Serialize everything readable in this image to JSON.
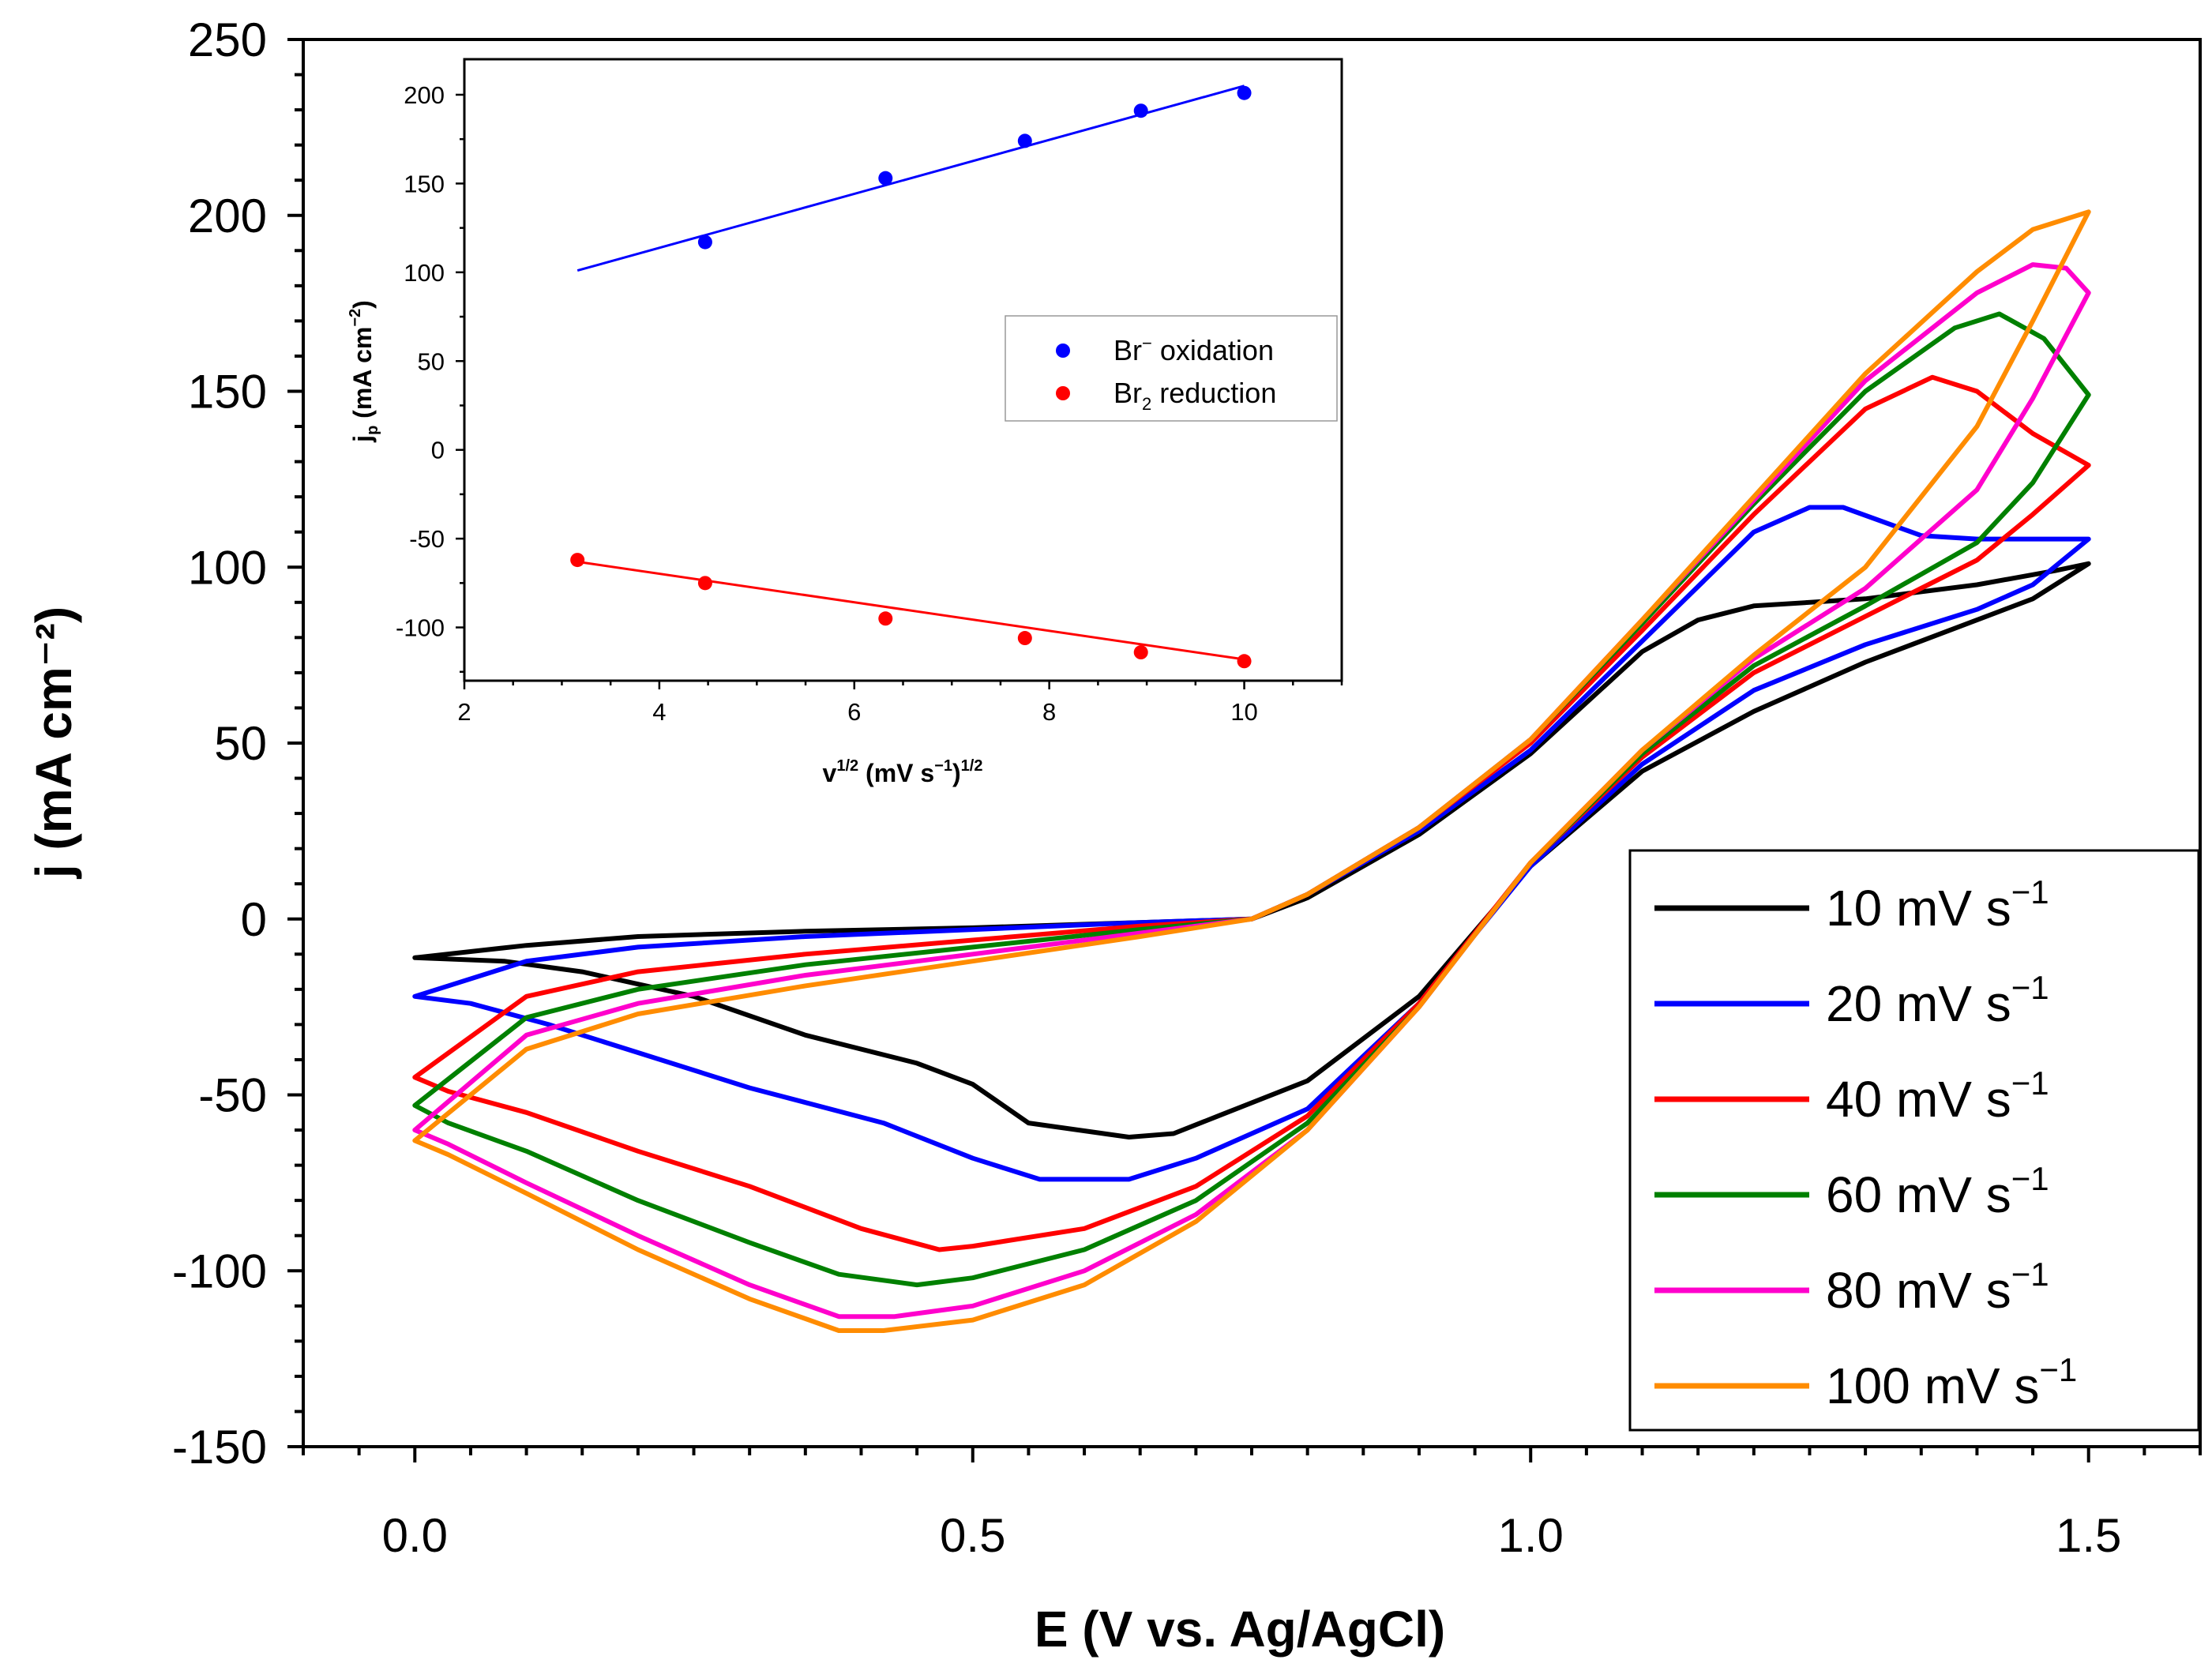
{
  "chart_data": [
    {
      "type": "line",
      "name": "cyclic-voltammogram",
      "xlabel": "E (V vs. Ag/AgCl)",
      "ylabel": "j (mA cm⁻²)",
      "xlim": [
        -0.1,
        1.6
      ],
      "ylim": [
        -150,
        250
      ],
      "x_ticks": [
        "0.0",
        "0.5",
        "1.0",
        "1.5"
      ],
      "y_ticks": [
        "-150",
        "-100",
        "-50",
        "0",
        "50",
        "100",
        "150",
        "200",
        "250"
      ],
      "legend_location": "lower-right",
      "series": [
        {
          "name": "10 mV s⁻¹",
          "label_main": "10 mV s",
          "label_sup": "−1",
          "color": "#000000",
          "forward": [
            [
              0,
              -11
            ],
            [
              0.1,
              -7.5
            ],
            [
              0.2,
              -5
            ],
            [
              0.35,
              -3.5
            ],
            [
              0.5,
              -2.5
            ],
            [
              0.65,
              -1
            ],
            [
              0.75,
              0
            ],
            [
              0.8,
              6
            ],
            [
              0.9,
              24
            ],
            [
              1.0,
              47
            ],
            [
              1.1,
              76
            ],
            [
              1.15,
              85
            ],
            [
              1.2,
              89
            ],
            [
              1.3,
              91
            ],
            [
              1.4,
              95
            ],
            [
              1.47,
              99
            ],
            [
              1.5,
              101
            ]
          ],
          "reverse": [
            [
              1.5,
              101
            ],
            [
              1.45,
              91
            ],
            [
              1.4,
              85
            ],
            [
              1.3,
              73
            ],
            [
              1.2,
              59
            ],
            [
              1.1,
              42
            ],
            [
              1.0,
              15
            ],
            [
              0.9,
              -22
            ],
            [
              0.8,
              -46
            ],
            [
              0.72,
              -56
            ],
            [
              0.68,
              -61
            ],
            [
              0.64,
              -62
            ],
            [
              0.55,
              -58
            ],
            [
              0.5,
              -47
            ],
            [
              0.45,
              -41
            ],
            [
              0.35,
              -33
            ],
            [
              0.25,
              -22
            ],
            [
              0.15,
              -15
            ],
            [
              0.08,
              -12
            ],
            [
              0,
              -11
            ]
          ]
        },
        {
          "name": "20 mV s⁻¹",
          "label_main": "20 mV s",
          "label_sup": "−1",
          "color": "#0000FF",
          "forward": [
            [
              0,
              -22
            ],
            [
              0.1,
              -12
            ],
            [
              0.2,
              -8
            ],
            [
              0.35,
              -5
            ],
            [
              0.5,
              -3
            ],
            [
              0.65,
              -1
            ],
            [
              0.75,
              0
            ],
            [
              0.8,
              7
            ],
            [
              0.9,
              25
            ],
            [
              1.0,
              48
            ],
            [
              1.1,
              79
            ],
            [
              1.2,
              110
            ],
            [
              1.25,
              117
            ],
            [
              1.28,
              117
            ],
            [
              1.35,
              109
            ],
            [
              1.4,
              108
            ],
            [
              1.5,
              108
            ]
          ],
          "reverse": [
            [
              1.5,
              108
            ],
            [
              1.45,
              95
            ],
            [
              1.4,
              88
            ],
            [
              1.3,
              78
            ],
            [
              1.2,
              65
            ],
            [
              1.1,
              44
            ],
            [
              1.0,
              15
            ],
            [
              0.9,
              -24
            ],
            [
              0.8,
              -54
            ],
            [
              0.7,
              -68
            ],
            [
              0.64,
              -74
            ],
            [
              0.56,
              -74
            ],
            [
              0.5,
              -68
            ],
            [
              0.42,
              -58
            ],
            [
              0.3,
              -48
            ],
            [
              0.2,
              -38
            ],
            [
              0.12,
              -30
            ],
            [
              0.05,
              -24
            ],
            [
              0,
              -22
            ]
          ]
        },
        {
          "name": "40 mV s⁻¹",
          "label_main": "40 mV s",
          "label_sup": "−1",
          "color": "#FF0000",
          "forward": [
            [
              0,
              -45
            ],
            [
              0.1,
              -22
            ],
            [
              0.2,
              -15
            ],
            [
              0.35,
              -10
            ],
            [
              0.5,
              -6
            ],
            [
              0.65,
              -2
            ],
            [
              0.75,
              0
            ],
            [
              0.8,
              7
            ],
            [
              0.9,
              26
            ],
            [
              1.0,
              50
            ],
            [
              1.1,
              82
            ],
            [
              1.2,
              115
            ],
            [
              1.3,
              145
            ],
            [
              1.36,
              154
            ],
            [
              1.4,
              150
            ],
            [
              1.45,
              138
            ],
            [
              1.5,
              129
            ]
          ],
          "reverse": [
            [
              1.5,
              129
            ],
            [
              1.45,
              115
            ],
            [
              1.4,
              102
            ],
            [
              1.3,
              86
            ],
            [
              1.2,
              70
            ],
            [
              1.1,
              46
            ],
            [
              1.0,
              16
            ],
            [
              0.9,
              -24
            ],
            [
              0.8,
              -56
            ],
            [
              0.7,
              -76
            ],
            [
              0.6,
              -88
            ],
            [
              0.5,
              -93
            ],
            [
              0.47,
              -94
            ],
            [
              0.4,
              -88
            ],
            [
              0.3,
              -76
            ],
            [
              0.2,
              -66
            ],
            [
              0.1,
              -55
            ],
            [
              0.03,
              -49
            ],
            [
              0,
              -45
            ]
          ]
        },
        {
          "name": "60 mV s⁻¹",
          "label_main": "60 mV s",
          "label_sup": "−1",
          "color": "#008000",
          "forward": [
            [
              0,
              -53
            ],
            [
              0.1,
              -28
            ],
            [
              0.2,
              -20
            ],
            [
              0.35,
              -13
            ],
            [
              0.5,
              -8
            ],
            [
              0.65,
              -3
            ],
            [
              0.75,
              0
            ],
            [
              0.8,
              7
            ],
            [
              0.9,
              26
            ],
            [
              1.0,
              51
            ],
            [
              1.1,
              84
            ],
            [
              1.2,
              118
            ],
            [
              1.3,
              150
            ],
            [
              1.38,
              168
            ],
            [
              1.42,
              172
            ],
            [
              1.46,
              165
            ],
            [
              1.5,
              149
            ]
          ],
          "reverse": [
            [
              1.5,
              149
            ],
            [
              1.45,
              124
            ],
            [
              1.4,
              107
            ],
            [
              1.3,
              89
            ],
            [
              1.2,
              72
            ],
            [
              1.1,
              47
            ],
            [
              1.0,
              16
            ],
            [
              0.9,
              -25
            ],
            [
              0.8,
              -58
            ],
            [
              0.7,
              -80
            ],
            [
              0.6,
              -94
            ],
            [
              0.5,
              -102
            ],
            [
              0.45,
              -104
            ],
            [
              0.38,
              -101
            ],
            [
              0.3,
              -92
            ],
            [
              0.2,
              -80
            ],
            [
              0.1,
              -66
            ],
            [
              0.03,
              -58
            ],
            [
              0,
              -53
            ]
          ]
        },
        {
          "name": "80 mV s⁻¹",
          "label_main": "80 mV s",
          "label_sup": "−1",
          "color": "#FF00CC",
          "forward": [
            [
              0,
              -60
            ],
            [
              0.1,
              -33
            ],
            [
              0.2,
              -24
            ],
            [
              0.35,
              -16
            ],
            [
              0.5,
              -10
            ],
            [
              0.65,
              -4
            ],
            [
              0.75,
              0
            ],
            [
              0.8,
              7
            ],
            [
              0.9,
              26
            ],
            [
              1.0,
              51
            ],
            [
              1.1,
              85
            ],
            [
              1.2,
              119
            ],
            [
              1.3,
              153
            ],
            [
              1.4,
              178
            ],
            [
              1.45,
              186
            ],
            [
              1.48,
              185
            ],
            [
              1.5,
              178
            ]
          ],
          "reverse": [
            [
              1.5,
              178
            ],
            [
              1.45,
              148
            ],
            [
              1.4,
              122
            ],
            [
              1.3,
              94
            ],
            [
              1.2,
              74
            ],
            [
              1.1,
              48
            ],
            [
              1.0,
              16
            ],
            [
              0.9,
              -25
            ],
            [
              0.8,
              -60
            ],
            [
              0.7,
              -84
            ],
            [
              0.6,
              -100
            ],
            [
              0.5,
              -110
            ],
            [
              0.43,
              -113
            ],
            [
              0.38,
              -113
            ],
            [
              0.3,
              -104
            ],
            [
              0.2,
              -90
            ],
            [
              0.1,
              -75
            ],
            [
              0.03,
              -64
            ],
            [
              0,
              -60
            ]
          ]
        },
        {
          "name": "100 mV s⁻¹",
          "label_main": "100 mV s",
          "label_sup": "−1",
          "color": "#FF8C00",
          "forward": [
            [
              0,
              -63
            ],
            [
              0.1,
              -37
            ],
            [
              0.2,
              -27
            ],
            [
              0.35,
              -19
            ],
            [
              0.5,
              -12
            ],
            [
              0.65,
              -5
            ],
            [
              0.75,
              0
            ],
            [
              0.8,
              7
            ],
            [
              0.9,
              26
            ],
            [
              1.0,
              51
            ],
            [
              1.1,
              85
            ],
            [
              1.2,
              120
            ],
            [
              1.3,
              155
            ],
            [
              1.4,
              184
            ],
            [
              1.45,
              196
            ],
            [
              1.5,
              201
            ]
          ],
          "reverse": [
            [
              1.5,
              201
            ],
            [
              1.45,
              170
            ],
            [
              1.4,
              140
            ],
            [
              1.3,
              100
            ],
            [
              1.2,
              75
            ],
            [
              1.1,
              48
            ],
            [
              1.0,
              16
            ],
            [
              0.9,
              -25
            ],
            [
              0.8,
              -60
            ],
            [
              0.7,
              -86
            ],
            [
              0.6,
              -104
            ],
            [
              0.5,
              -114
            ],
            [
              0.42,
              -117
            ],
            [
              0.38,
              -117
            ],
            [
              0.3,
              -108
            ],
            [
              0.2,
              -94
            ],
            [
              0.1,
              -78
            ],
            [
              0.03,
              -67
            ],
            [
              0,
              -63
            ]
          ]
        }
      ]
    },
    {
      "type": "scatter",
      "name": "inset-peak-current",
      "xlabel_main": "v",
      "xlabel_sup1": "1/2",
      "xlabel_mid": " (mV s",
      "xlabel_sup2": "−1",
      "xlabel_end": ")",
      "xlabel_sup3": "1/2",
      "ylabel_main": "j",
      "ylabel_sub": "p",
      "ylabel_mid": " (mA cm",
      "ylabel_sup": "−2",
      "ylabel_end": ")",
      "xlim": [
        2,
        11
      ],
      "ylim": [
        -130,
        220
      ],
      "x_ticks": [
        "2",
        "4",
        "6",
        "8",
        "10"
      ],
      "y_ticks": [
        "-100",
        "-50",
        "0",
        "50",
        "100",
        "150",
        "200"
      ],
      "legend_location": "center-right",
      "series": [
        {
          "name": "Br⁻ oxidation",
          "legend_main": "Br",
          "legend_sup": "−",
          "legend_rest": " oxidation",
          "color": "#0000FF",
          "points": [
            [
              4.47,
              117
            ],
            [
              6.32,
              153
            ],
            [
              7.75,
              174
            ],
            [
              8.94,
              191
            ],
            [
              10.0,
              201
            ]
          ],
          "fit": [
            [
              3.16,
              101
            ],
            [
              10.0,
              205
            ]
          ]
        },
        {
          "name": "Br₂ reduction",
          "legend_main": "Br",
          "legend_sub": "2",
          "legend_rest": " reduction",
          "color": "#FF0000",
          "points": [
            [
              3.16,
              -62
            ],
            [
              4.47,
              -75
            ],
            [
              6.32,
              -95
            ],
            [
              7.75,
              -106
            ],
            [
              8.94,
              -114
            ],
            [
              10.0,
              -119
            ]
          ],
          "fit": [
            [
              3.16,
              -63
            ],
            [
              10.0,
              -118
            ]
          ]
        }
      ]
    }
  ]
}
